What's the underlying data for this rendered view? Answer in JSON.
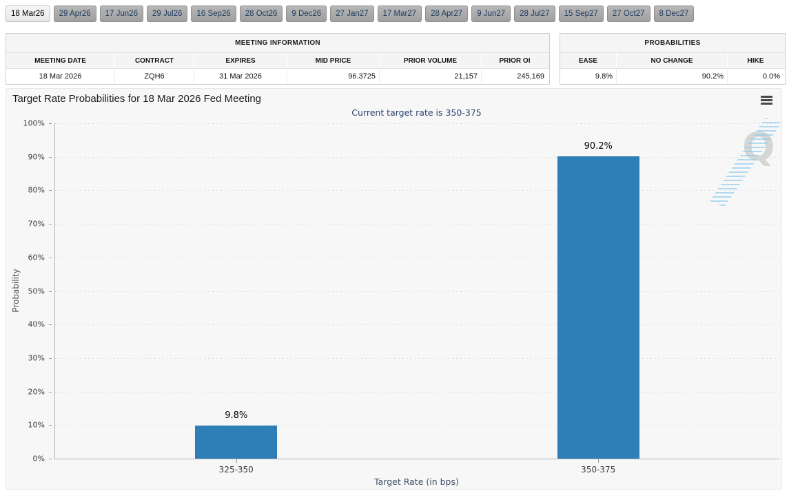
{
  "tabs": {
    "items": [
      {
        "label": "18 Mar26",
        "active": true
      },
      {
        "label": "29 Apr26",
        "active": false
      },
      {
        "label": "17 Jun26",
        "active": false
      },
      {
        "label": "29 Jul26",
        "active": false
      },
      {
        "label": "16 Sep26",
        "active": false
      },
      {
        "label": "28 Oct26",
        "active": false
      },
      {
        "label": "9 Dec26",
        "active": false
      },
      {
        "label": "27 Jan27",
        "active": false
      },
      {
        "label": "17 Mar27",
        "active": false
      },
      {
        "label": "28 Apr27",
        "active": false
      },
      {
        "label": "9 Jun27",
        "active": false
      },
      {
        "label": "28 Jul27",
        "active": false
      },
      {
        "label": "15 Sep27",
        "active": false
      },
      {
        "label": "27 Oct27",
        "active": false
      },
      {
        "label": "8 Dec27",
        "active": false
      }
    ]
  },
  "meeting_information": {
    "title": "MEETING INFORMATION",
    "columns": [
      "MEETING DATE",
      "CONTRACT",
      "EXPIRES",
      "MID PRICE",
      "PRIOR VOLUME",
      "PRIOR OI"
    ],
    "row": [
      "18 Mar 2026",
      "ZQH6",
      "31 Mar 2026",
      "96.3725",
      "21,157",
      "245,169"
    ],
    "align": [
      "center",
      "center",
      "center",
      "right",
      "right",
      "right"
    ]
  },
  "probabilities": {
    "title": "PROBABILITIES",
    "columns": [
      "EASE",
      "NO CHANGE",
      "HIKE"
    ],
    "row": [
      "9.8%",
      "90.2%",
      "0.0%"
    ],
    "align": [
      "right",
      "right",
      "right"
    ]
  },
  "chart": {
    "menu_icon": "hamburger-icon",
    "watermark_letter": "Q"
  },
  "chart_data": {
    "type": "bar",
    "title": "Target Rate Probabilities for 18 Mar 2026 Fed Meeting",
    "subtitle": "Current target rate is 350-375",
    "categories": [
      "325-350",
      "350-375"
    ],
    "values": [
      9.8,
      90.2
    ],
    "bar_labels": [
      "9.8%",
      "90.2%"
    ],
    "xlabel": "Target Rate (in bps)",
    "ylabel": "Probability",
    "ylim": [
      0,
      100
    ],
    "ytick_step": 10,
    "ytick_suffix": "%",
    "bar_color": "#2e7eb8",
    "grid": "dotted horizontal",
    "legend": "none"
  }
}
